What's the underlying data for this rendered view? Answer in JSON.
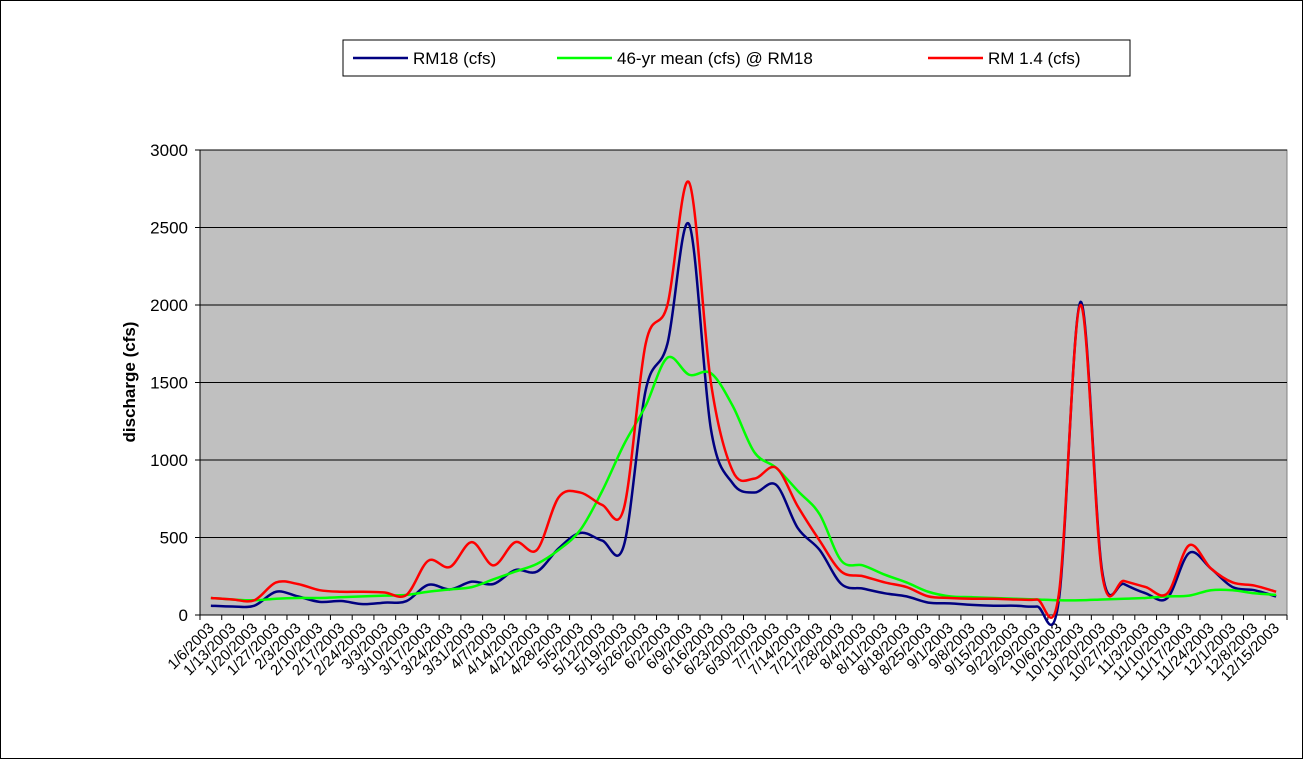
{
  "chart_data": {
    "type": "line",
    "y_label": "discharge (cfs)",
    "categories": [
      "1/6/2003",
      "1/13/2003",
      "1/20/2003",
      "1/27/2003",
      "2/3/2003",
      "2/10/2003",
      "2/17/2003",
      "2/24/2003",
      "3/3/2003",
      "3/10/2003",
      "3/17/2003",
      "3/24/2003",
      "3/31/2003",
      "4/7/2003",
      "4/14/2003",
      "4/21/2003",
      "4/28/2003",
      "5/5/2003",
      "5/12/2003",
      "5/19/2003",
      "5/26/2003",
      "6/2/2003",
      "6/9/2003",
      "6/16/2003",
      "6/23/2003",
      "6/30/2003",
      "7/7/2003",
      "7/14/2003",
      "7/21/2003",
      "7/28/2003",
      "8/4/2003",
      "8/11/2003",
      "8/18/2003",
      "8/25/2003",
      "9/1/2003",
      "9/8/2003",
      "9/15/2003",
      "9/22/2003",
      "9/29/2003",
      "10/6/2003",
      "10/13/2003",
      "10/20/2003",
      "10/27/2003",
      "11/3/2003",
      "11/10/2003",
      "11/17/2003",
      "11/24/2003",
      "12/1/2003",
      "12/8/2003",
      "12/15/2003"
    ],
    "series": [
      {
        "name": "RM18 (cfs)",
        "color": "#000080",
        "values": [
          60,
          55,
          60,
          150,
          120,
          85,
          90,
          70,
          80,
          90,
          195,
          165,
          215,
          200,
          290,
          280,
          430,
          530,
          480,
          450,
          1450,
          1750,
          2520,
          1200,
          850,
          790,
          840,
          560,
          420,
          200,
          170,
          140,
          120,
          80,
          75,
          65,
          60,
          60,
          55,
          90,
          2020,
          280,
          200,
          140,
          110,
          400,
          300,
          180,
          160,
          120
        ]
      },
      {
        "name": "46-yr mean (cfs) @ RM18",
        "color": "#00ff00",
        "values": [
          110,
          100,
          95,
          105,
          110,
          110,
          115,
          120,
          125,
          130,
          150,
          165,
          180,
          230,
          280,
          330,
          420,
          550,
          800,
          1100,
          1350,
          1660,
          1550,
          1560,
          1350,
          1050,
          950,
          800,
          650,
          350,
          320,
          260,
          210,
          150,
          120,
          115,
          110,
          105,
          100,
          95,
          95,
          100,
          105,
          110,
          120,
          125,
          160,
          160,
          140,
          130
        ]
      },
      {
        "name": "RM 1.4 (cfs)",
        "color": "#ff0000",
        "values": [
          110,
          100,
          95,
          210,
          200,
          160,
          150,
          150,
          145,
          130,
          350,
          310,
          470,
          320,
          470,
          420,
          760,
          790,
          710,
          690,
          1750,
          2000,
          2790,
          1500,
          930,
          880,
          950,
          700,
          480,
          280,
          250,
          210,
          180,
          120,
          110,
          105,
          105,
          100,
          100,
          130,
          2000,
          260,
          220,
          180,
          140,
          450,
          300,
          210,
          190,
          150
        ]
      }
    ],
    "ylim": [
      0,
      3000
    ],
    "yticks": [
      0,
      500,
      1000,
      1500,
      2000,
      2500,
      3000
    ],
    "grid": true,
    "plot_background": "#c0c0c0"
  }
}
